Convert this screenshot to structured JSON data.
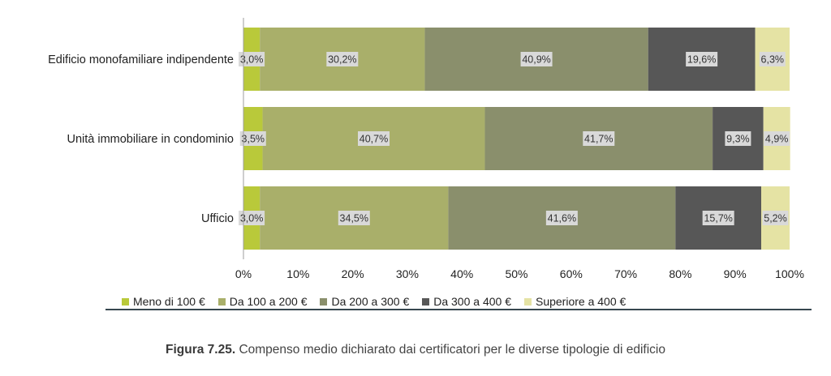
{
  "chart_data": {
    "type": "bar",
    "orientation": "horizontal",
    "stacked": true,
    "categories": [
      "Edificio monofamiliare indipendente",
      "Unità immobiliare in condominio",
      "Ufficio"
    ],
    "series": [
      {
        "name": "Meno di 100 €",
        "color": "#b9c93a",
        "values": [
          3.0,
          3.5,
          3.0
        ],
        "labels": [
          "3,0%",
          "3,5%",
          "3,0%"
        ]
      },
      {
        "name": "Da 100 a 200 €",
        "color": "#a9af6a",
        "values": [
          30.2,
          40.7,
          34.5
        ],
        "labels": [
          "30,2%",
          "40,7%",
          "34,5%"
        ]
      },
      {
        "name": "Da 200 a 300 €",
        "color": "#8a8f6c",
        "values": [
          40.9,
          41.7,
          41.6
        ],
        "labels": [
          "40,9%",
          "41,7%",
          "41,6%"
        ]
      },
      {
        "name": "Da 300 a 400 €",
        "color": "#575757",
        "values": [
          19.6,
          9.3,
          15.7
        ],
        "labels": [
          "19,6%",
          "9,3%",
          "15,7%"
        ]
      },
      {
        "name": "Superiore a 400 €",
        "color": "#e5e3a4",
        "values": [
          6.3,
          4.9,
          5.2
        ],
        "labels": [
          "6,3%",
          "4,9%",
          "5,2%"
        ]
      }
    ],
    "xlim": [
      0,
      100
    ],
    "xticks": [
      "0%",
      "10%",
      "20%",
      "30%",
      "40%",
      "50%",
      "60%",
      "70%",
      "80%",
      "90%",
      "100%"
    ],
    "legend_position": "bottom",
    "grid": false
  },
  "caption": {
    "label": "Figura 7.25.",
    "text": " Compenso medio dichiarato dai certificatori per le diverse tipologie di edificio"
  }
}
